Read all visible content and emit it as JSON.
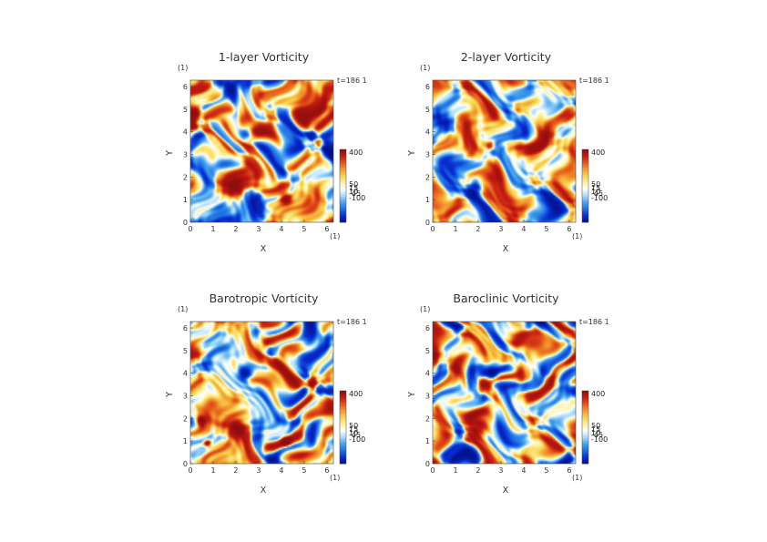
{
  "chart_data": [
    {
      "type": "heatmap",
      "title": "1-layer Vorticity",
      "xlabel": "X",
      "ylabel": "Y",
      "x_unit": "(1)",
      "y_unit": "(1)",
      "xlim": [
        0,
        6.283
      ],
      "ylim": [
        0,
        6.283
      ],
      "x_ticks": [
        "0",
        "1",
        "2",
        "3",
        "4",
        "5",
        "6"
      ],
      "y_ticks": [
        "0",
        "1",
        "2",
        "3",
        "4",
        "5",
        "6"
      ],
      "time_label": "t=186 1",
      "colorbar_labels": [
        "400",
        "50",
        "15",
        "10",
        "-45",
        "-100"
      ],
      "colorbar_values": [
        400,
        50,
        15,
        10,
        -45,
        -100
      ],
      "vortices": [
        {
          "x": 2.0,
          "y": 1.55,
          "sign": 1,
          "radius": 0.45
        },
        {
          "x": 0.15,
          "y": 4.8,
          "sign": 1,
          "radius": 0.35
        },
        {
          "x": 6.1,
          "y": 3.2,
          "sign": -1,
          "radius": 0.32
        },
        {
          "x": 2.5,
          "y": 3.95,
          "sign": -1,
          "radius": 0.3
        },
        {
          "x": 4.2,
          "y": 1.05,
          "sign": 1,
          "radius": 0.25
        }
      ]
    },
    {
      "type": "heatmap",
      "title": "2-layer Vorticity",
      "xlabel": "X",
      "ylabel": "Y",
      "x_unit": "(1)",
      "y_unit": "(1)",
      "xlim": [
        0,
        6.283
      ],
      "ylim": [
        0,
        6.283
      ],
      "x_ticks": [
        "0",
        "1",
        "2",
        "3",
        "4",
        "5",
        "6"
      ],
      "y_ticks": [
        "0",
        "1",
        "2",
        "3",
        "4",
        "5",
        "6"
      ],
      "time_label": "t=186 1",
      "colorbar_labels": [
        "400",
        "50",
        "15",
        "10",
        "-45",
        "-100"
      ],
      "colorbar_values": [
        400,
        50,
        15,
        10,
        -45,
        -100
      ],
      "vortices": [
        {
          "x": 1.9,
          "y": 1.55,
          "sign": -1,
          "radius": 0.35
        },
        {
          "x": 2.5,
          "y": 3.4,
          "sign": 1,
          "radius": 0.25
        }
      ]
    },
    {
      "type": "heatmap",
      "title": "Barotropic Vorticity",
      "xlabel": "X",
      "ylabel": "Y",
      "x_unit": "(1)",
      "y_unit": "(1)",
      "xlim": [
        0,
        6.283
      ],
      "ylim": [
        0,
        6.283
      ],
      "x_ticks": [
        "0",
        "1",
        "2",
        "3",
        "4",
        "5",
        "6"
      ],
      "y_ticks": [
        "0",
        "1",
        "2",
        "3",
        "4",
        "5",
        "6"
      ],
      "time_label": "t=186 1",
      "colorbar_labels": [
        "400",
        "50",
        "15",
        "10",
        "-45",
        "-100"
      ],
      "colorbar_values": [
        400,
        50,
        15,
        10,
        -45,
        -100
      ],
      "vortices": [
        {
          "x": 2.0,
          "y": 1.6,
          "sign": 1,
          "radius": 0.4
        },
        {
          "x": 0.15,
          "y": 4.85,
          "sign": 1,
          "radius": 0.35
        },
        {
          "x": 2.4,
          "y": 3.95,
          "sign": -1,
          "radius": 0.3
        },
        {
          "x": 6.1,
          "y": 3.2,
          "sign": -1,
          "radius": 0.3
        },
        {
          "x": 0.5,
          "y": 1.9,
          "sign": 1,
          "radius": 0.18
        },
        {
          "x": 4.2,
          "y": 1.0,
          "sign": 1,
          "radius": 0.2
        },
        {
          "x": 0.75,
          "y": 0.9,
          "sign": 1,
          "radius": 0.15
        }
      ]
    },
    {
      "type": "heatmap",
      "title": "Baroclinic Vorticity",
      "xlabel": "X",
      "ylabel": "Y",
      "x_unit": "(1)",
      "y_unit": "(1)",
      "xlim": [
        0,
        6.283
      ],
      "ylim": [
        0,
        6.283
      ],
      "x_ticks": [
        "0",
        "1",
        "2",
        "3",
        "4",
        "5",
        "6"
      ],
      "y_ticks": [
        "0",
        "1",
        "2",
        "3",
        "4",
        "5",
        "6"
      ],
      "time_label": "t=186 1",
      "colorbar_labels": [
        "400",
        "50",
        "15",
        "10",
        "-45",
        "-100"
      ],
      "colorbar_values": [
        400,
        50,
        15,
        10,
        -45,
        -100
      ],
      "vortices": [
        {
          "x": 2.0,
          "y": 1.6,
          "sign": 1,
          "radius": 0.42
        },
        {
          "x": 0.15,
          "y": 4.8,
          "sign": 1,
          "radius": 0.33
        },
        {
          "x": 6.1,
          "y": 3.2,
          "sign": -1,
          "radius": 0.3
        },
        {
          "x": 2.6,
          "y": 3.95,
          "sign": -1,
          "radius": 0.25
        },
        {
          "x": 4.2,
          "y": 6.1,
          "sign": -1,
          "radius": 0.25
        }
      ]
    }
  ],
  "colors": {
    "colormap": [
      "#00108a",
      "#0b2fd6",
      "#1d72e3",
      "#4aa3ee",
      "#a9dcfb",
      "#ffffff",
      "#fff29a",
      "#f9d24e",
      "#f29a2f",
      "#e4531b",
      "#c21a12",
      "#8a0d0d"
    ],
    "text": "#333333"
  }
}
